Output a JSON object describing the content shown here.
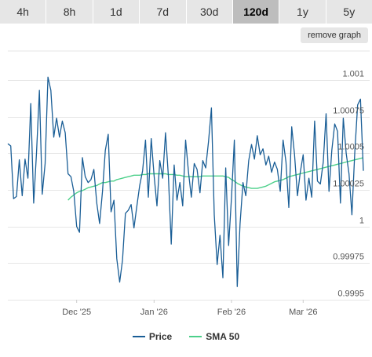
{
  "tabs": [
    {
      "label": "4h"
    },
    {
      "label": "8h"
    },
    {
      "label": "1d"
    },
    {
      "label": "7d"
    },
    {
      "label": "30d"
    },
    {
      "label": "120d",
      "active": true
    },
    {
      "label": "1y"
    },
    {
      "label": "5y"
    }
  ],
  "remove_graph_label": "remove graph",
  "colors": {
    "price": "#1a5e96",
    "sma": "#4cd08a",
    "grid": "#e6e6e6",
    "tab_bg": "#e6e6e6",
    "tab_active_bg": "#bdbdbd"
  },
  "chart_data": {
    "type": "line",
    "ylim": [
      0.9995,
      1.001
    ],
    "y_ticks": [
      "1.001",
      "1.00075",
      "1.0005",
      "1.00025",
      "1",
      "0.99975",
      "0.9995"
    ],
    "y_tick_values": [
      1.001,
      1.00075,
      1.0005,
      1.00025,
      1.0,
      0.99975,
      0.9995
    ],
    "x_ticks": [
      "Dec '25",
      "Jan '26",
      "Feb '26",
      "Mar '26"
    ],
    "x_tick_index": [
      24,
      51,
      78,
      103
    ],
    "legend": [
      "Price",
      "SMA 50"
    ],
    "series": [
      {
        "name": "Price",
        "values": [
          1.000565,
          1.00055,
          1.00019,
          1.000205,
          1.000455,
          1.00021,
          1.00046,
          1.00033,
          1.00084,
          1.00016,
          1.0005,
          1.00093,
          1.00022,
          1.00043,
          1.00102,
          1.00093,
          1.00061,
          1.00074,
          1.00061,
          1.00072,
          1.00064,
          1.00036,
          1.00034,
          1.00024,
          1.0,
          0.99996,
          1.00047,
          1.00034,
          1.0003,
          1.00032,
          1.00039,
          1.00016,
          1.00002,
          1.00024,
          1.00052,
          1.00063,
          1.0001,
          1.00018,
          0.99978,
          0.99962,
          0.99977,
          1.00009,
          1.00011,
          1.00015,
          0.99999,
          1.00014,
          1.00028,
          1.00038,
          1.00059,
          1.0002,
          1.0006,
          1.00035,
          1.00014,
          1.00045,
          1.00033,
          1.00064,
          1.00034,
          0.99988,
          1.00042,
          1.00018,
          1.0003,
          1.00014,
          1.00059,
          1.00037,
          1.0002,
          1.00043,
          1.00039,
          1.00023,
          1.00045,
          1.0004,
          1.00058,
          1.00081,
          1.00008,
          0.99974,
          0.99994,
          0.99965,
          1.0004,
          0.99987,
          1.0002,
          1.00059,
          0.99959,
          1.00002,
          1.0003,
          1.00021,
          1.00045,
          1.00056,
          1.00046,
          1.00062,
          1.00049,
          1.00053,
          1.00042,
          1.00048,
          1.00037,
          1.00044,
          1.00039,
          1.00024,
          1.00059,
          1.00044,
          1.00013,
          1.00068,
          1.00049,
          1.00021,
          1.00037,
          1.00049,
          1.00018,
          1.00033,
          1.0002,
          1.00072,
          1.00031,
          1.00029,
          1.00044,
          1.00077,
          1.00024,
          1.00052,
          1.0007,
          1.00065,
          1.00016,
          1.00074,
          1.0005,
          1.00036,
          1.00008,
          1.0005,
          1.00083,
          1.00087,
          1.00038
        ]
      },
      {
        "name": "SMA 50",
        "values": [
          1.00018,
          1.0002,
          1.000215,
          1.00023,
          1.00024,
          1.000245,
          1.000255,
          1.000265,
          1.00027,
          1.000275,
          1.00028,
          1.00029,
          1.0003,
          1.0003,
          1.000305,
          1.00031,
          1.00031,
          1.00032,
          1.000325,
          1.00033,
          1.000335,
          1.00034,
          1.000345,
          1.00035,
          1.00035,
          1.00035,
          1.000355,
          1.000355,
          1.00036,
          1.00036,
          1.00036,
          1.00036,
          1.00036,
          1.00036,
          1.00036,
          1.000355,
          1.000355,
          1.000355,
          1.00035,
          1.00035,
          1.000345,
          1.00034,
          1.00034,
          1.00034,
          1.00034,
          1.00034,
          1.00034,
          1.000345,
          1.000345,
          1.000345,
          1.000345,
          1.000345,
          1.000345,
          1.000345,
          1.000345,
          1.00034,
          1.000335,
          1.00032,
          1.00031,
          1.000295,
          1.000285,
          1.000275,
          1.00027,
          1.000265,
          1.00026,
          1.00026,
          1.00026,
          1.000265,
          1.00027,
          1.000275,
          1.000285,
          1.000295,
          1.000305,
          1.00031,
          1.000315,
          1.00032,
          1.00033,
          1.00034,
          1.000345,
          1.00035,
          1.000355,
          1.00036,
          1.000365,
          1.00037,
          1.000375,
          1.00038,
          1.000385,
          1.00039,
          1.000395,
          1.0004,
          1.000405,
          1.00041,
          1.000415,
          1.00042,
          1.000425,
          1.00043,
          1.000435,
          1.00044,
          1.000445,
          1.00045,
          1.000455,
          1.00046,
          1.000465,
          1.00047
        ]
      }
    ]
  }
}
